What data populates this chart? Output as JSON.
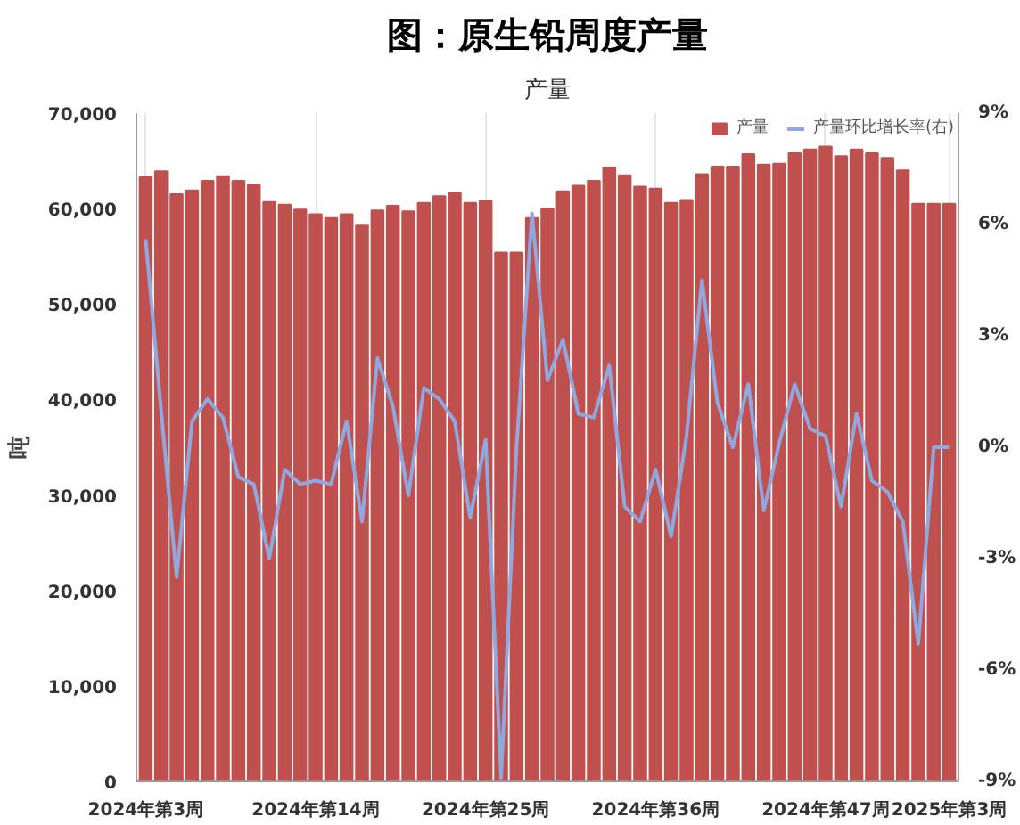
{
  "chart_data": {
    "type": "bar",
    "title": "图：原生铅周度产量",
    "subtitle": "产量",
    "ylabel": "吨",
    "categories": [
      "2024年第3周",
      null,
      null,
      null,
      null,
      null,
      null,
      null,
      null,
      null,
      null,
      "2024年第14周",
      null,
      null,
      null,
      null,
      null,
      null,
      null,
      null,
      null,
      null,
      "2024年第25周",
      null,
      null,
      null,
      null,
      null,
      null,
      null,
      null,
      null,
      null,
      "2024年第36周",
      null,
      null,
      null,
      null,
      null,
      null,
      null,
      null,
      null,
      null,
      "2024年第47周",
      null,
      null,
      null,
      null,
      null,
      null,
      null,
      "2025年第3周"
    ],
    "series": [
      {
        "name": "产量",
        "color": "#c0504d",
        "values": [
          63300,
          63900,
          61500,
          61900,
          62900,
          63400,
          62900,
          62500,
          60700,
          60400,
          59900,
          59400,
          59000,
          59400,
          58300,
          59800,
          60300,
          59700,
          60600,
          61300,
          61600,
          60600,
          60800,
          55400,
          55400,
          59000,
          60000,
          61800,
          62400,
          62900,
          64300,
          63500,
          62300,
          62100,
          60600,
          60900,
          63600,
          64400,
          64400,
          65700,
          64600,
          64700,
          65800,
          66200,
          66500,
          65500,
          66200,
          65800,
          65300,
          64000,
          60500,
          60500,
          60500
        ]
      },
      {
        "name": "产量环比增长率(右)",
        "type": "line",
        "axis": "y2",
        "color": "#8fa8e0",
        "values": [
          5.6,
          1.0,
          -3.5,
          0.7,
          1.3,
          0.8,
          -0.8,
          -1.0,
          -3.0,
          -0.6,
          -1.0,
          -0.9,
          -1.0,
          0.7,
          -2.0,
          2.4,
          1.1,
          -1.3,
          1.6,
          1.3,
          0.7,
          -1.9,
          0.2,
          -8.9,
          0.0,
          6.3,
          1.8,
          2.9,
          0.9,
          0.8,
          2.2,
          -1.6,
          -2.0,
          -0.6,
          -2.4,
          0.3,
          4.5,
          1.2,
          0.0,
          1.7,
          -1.7,
          0.1,
          1.7,
          0.5,
          0.3,
          -1.6,
          0.9,
          -0.9,
          -1.2,
          -2.0,
          -5.3,
          0.0,
          0.0
        ]
      }
    ],
    "ylim": [
      0,
      70000
    ],
    "yticks": [
      0,
      {
        "value": 10000,
        "label": "10,000"
      },
      {
        "value": 20000,
        "label": "20,000"
      },
      {
        "value": 30000,
        "label": "30,000"
      },
      {
        "value": 40000,
        "label": "40,000"
      },
      {
        "value": 50000,
        "label": "50,000"
      },
      {
        "value": 60000,
        "label": "60,000"
      },
      {
        "value": 70000,
        "label": "70,000"
      }
    ],
    "y2lim": [
      -9,
      9
    ],
    "y2ticks": [
      {
        "value": -9,
        "label": "-9%"
      },
      {
        "value": -6,
        "label": "-6%"
      },
      {
        "value": -3,
        "label": "-3%"
      },
      {
        "value": 0,
        "label": "0%"
      },
      {
        "value": 3,
        "label": "3%"
      },
      {
        "value": 6,
        "label": "6%"
      },
      {
        "value": 9,
        "label": "9%"
      }
    ],
    "grid": "x",
    "legend": "top right",
    "marker": "none",
    "line_style": "solid"
  }
}
